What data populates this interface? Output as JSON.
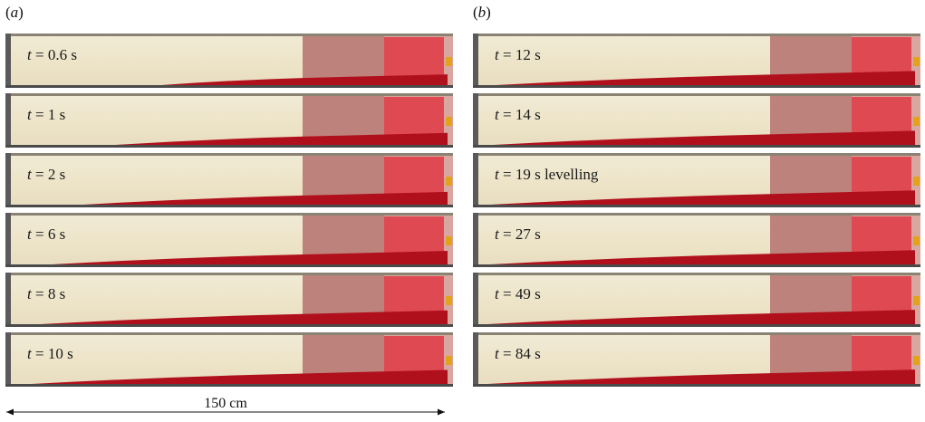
{
  "panels": [
    {
      "label": "a",
      "frames": [
        {
          "t": "t",
          "eq": " = 0.6 s",
          "front": 0.51
        },
        {
          "t": "t",
          "eq": " = 1 s",
          "front": 0.35
        },
        {
          "t": "t",
          "eq": " = 2 s",
          "front": 0.24
        },
        {
          "t": "t",
          "eq": " = 6 s",
          "front": 0.13
        },
        {
          "t": "t",
          "eq": " = 8 s",
          "front": 0.09
        },
        {
          "t": "t",
          "eq": " = 10 s",
          "front": 0.06
        }
      ]
    },
    {
      "label": "b",
      "frames": [
        {
          "t": "t",
          "eq": " = 12 s",
          "front": 0.05
        },
        {
          "t": "t",
          "eq": " = 14 s",
          "front": 0.04
        },
        {
          "t": "t",
          "eq": " = 19 s levelling",
          "front": 0.03
        },
        {
          "t": "t",
          "eq": " = 27 s",
          "front": 0.03
        },
        {
          "t": "t",
          "eq": " = 49 s",
          "front": 0.02
        },
        {
          "t": "t",
          "eq": " = 84 s",
          "front": 0.02
        }
      ]
    }
  ],
  "scale_bar": {
    "label": "150 cm"
  },
  "colors": {
    "fluid": "#b0101c",
    "lock": "#e03a44",
    "background": "#efe6cc"
  }
}
